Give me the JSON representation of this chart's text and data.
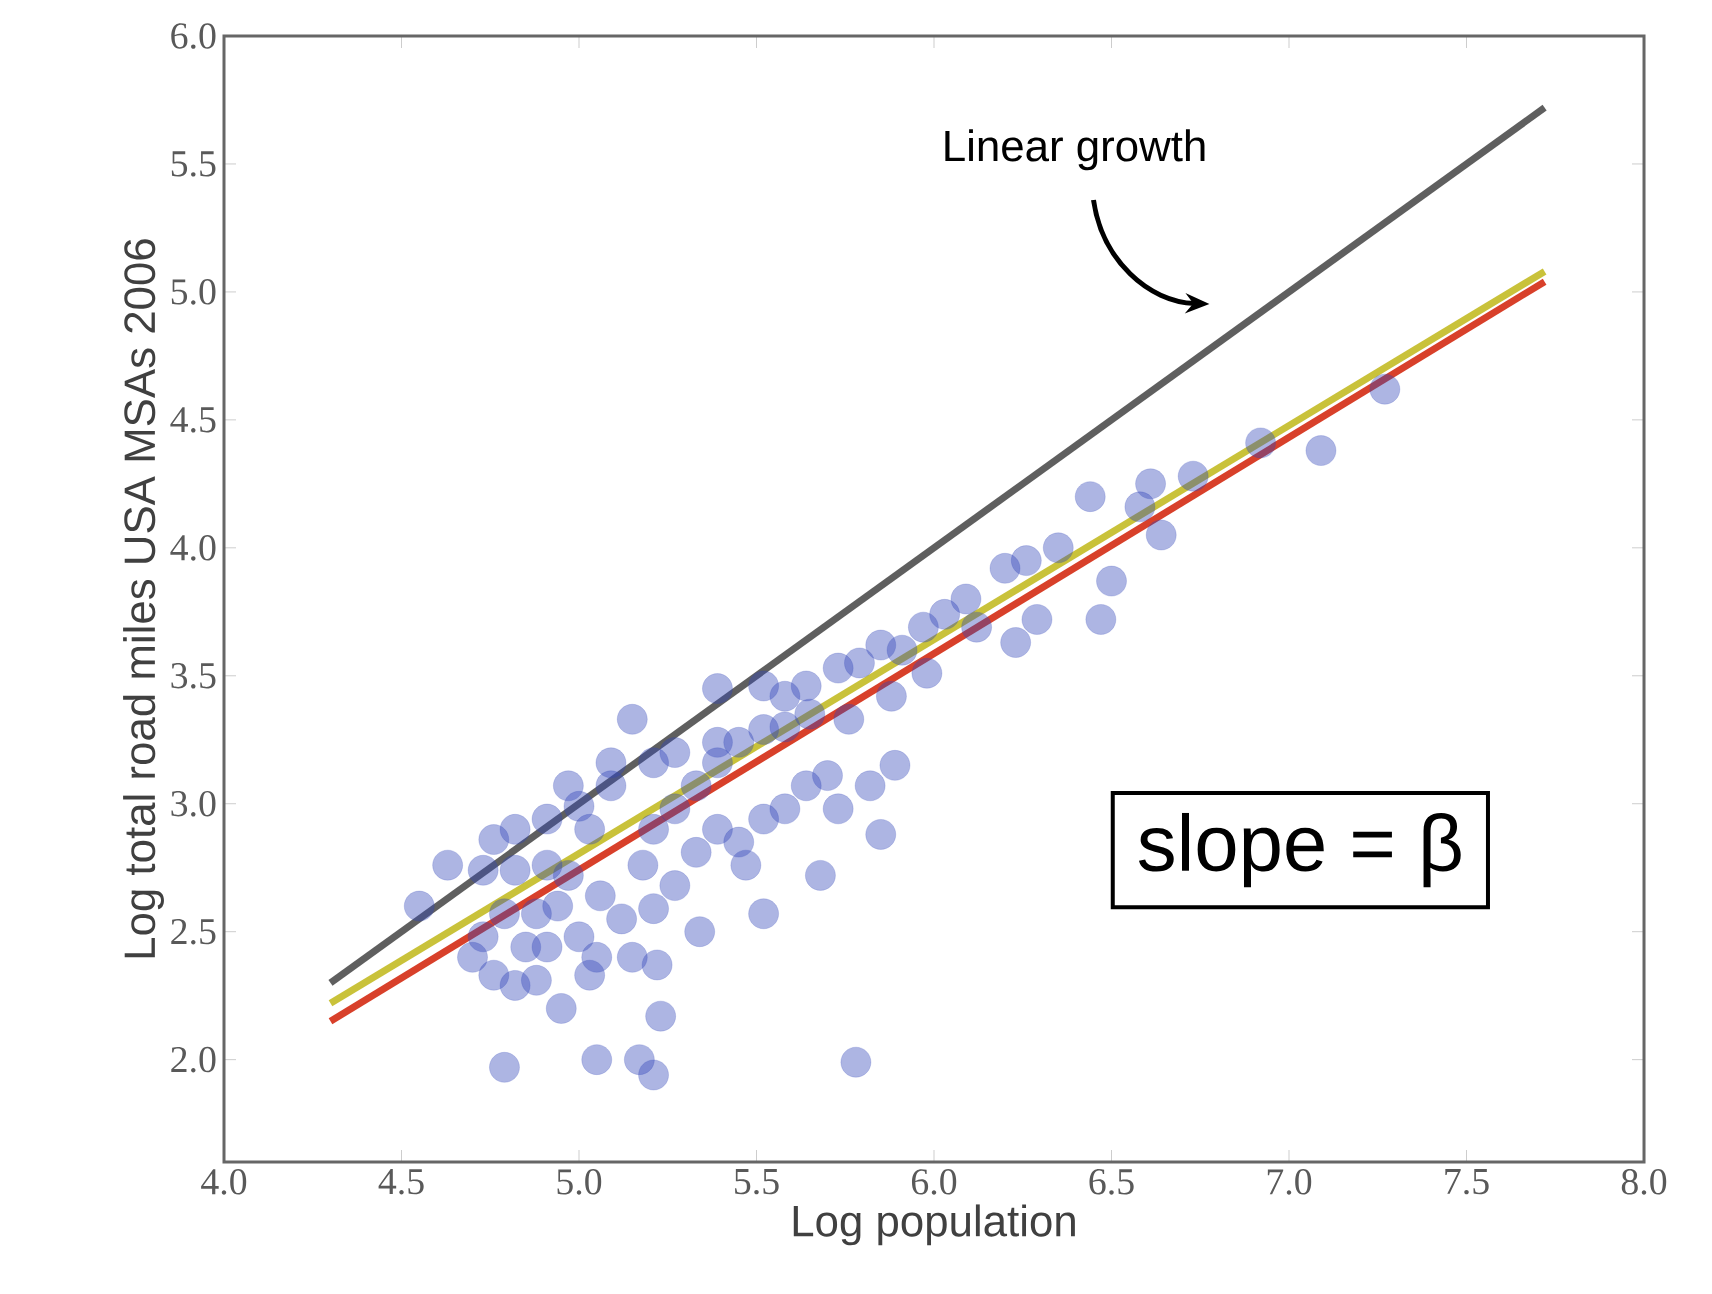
{
  "chart_data": {
    "type": "scatter",
    "xlabel": "Log population",
    "ylabel": "Log total road miles USA MSAs 2006",
    "xlim": [
      4.0,
      8.0
    ],
    "ylim": [
      1.6,
      6.0
    ],
    "xticks": [
      {
        "value": 4.0,
        "label": "4.0"
      },
      {
        "value": 4.5,
        "label": "4.5"
      },
      {
        "value": 5.0,
        "label": "5.0"
      },
      {
        "value": 5.5,
        "label": "5.5"
      },
      {
        "value": 6.0,
        "label": "6.0"
      },
      {
        "value": 6.5,
        "label": "6.5"
      },
      {
        "value": 7.0,
        "label": "7.0"
      },
      {
        "value": 7.5,
        "label": "7.5"
      },
      {
        "value": 8.0,
        "label": "8.0"
      }
    ],
    "yticks": [
      {
        "value": 2.0,
        "label": "2.0"
      },
      {
        "value": 2.5,
        "label": "2.5"
      },
      {
        "value": 3.0,
        "label": "3.0"
      },
      {
        "value": 3.5,
        "label": "3.5"
      },
      {
        "value": 4.0,
        "label": "4.0"
      },
      {
        "value": 4.5,
        "label": "4.5"
      },
      {
        "value": 5.0,
        "label": "5.0"
      },
      {
        "value": 5.5,
        "label": "5.5"
      },
      {
        "value": 6.0,
        "label": "6.0"
      }
    ],
    "grid": false,
    "annotations": [
      "Linear growth",
      "slope = β"
    ],
    "series": [
      {
        "marker": "circle",
        "color": "#3347b8",
        "x": [
          4.55,
          4.63,
          4.79,
          5.05,
          5.21,
          5.17,
          5.78,
          5.15,
          5.39,
          5.22,
          5.23,
          5.05,
          4.95,
          5.34,
          5.52,
          5.47,
          5.68,
          5.58,
          5.85,
          5.89,
          5.82,
          5.73,
          5.58,
          5.65,
          5.85,
          5.98,
          5.97,
          6.09,
          6.23,
          6.29,
          6.2,
          6.26,
          6.35,
          6.44,
          6.47,
          6.5,
          6.61,
          6.64,
          6.73,
          6.92,
          7.09,
          7.27,
          6.58,
          6.12,
          6.03,
          4.7,
          4.73,
          4.76,
          4.82,
          4.88,
          4.85,
          4.79,
          4.73,
          4.76,
          4.82,
          4.91,
          4.97,
          5.0,
          5.09,
          5.09,
          5.03,
          4.91,
          4.97,
          4.94,
          5.06,
          5.12,
          5.18,
          5.21,
          5.27,
          5.33,
          5.39,
          5.45,
          5.52,
          5.58,
          5.64,
          5.73,
          5.79,
          5.91,
          5.33,
          5.39,
          5.27,
          5.21,
          5.52,
          5.45,
          5.64,
          5.7,
          5.0,
          4.88,
          5.15,
          4.82,
          5.21,
          5.27,
          4.91,
          5.03,
          5.76,
          5.88,
          5.52,
          5.39
        ],
        "values": [
          2.6,
          2.76,
          1.97,
          2.0,
          1.94,
          2.0,
          1.99,
          3.33,
          3.45,
          2.37,
          2.17,
          2.4,
          2.2,
          2.5,
          2.57,
          2.76,
          2.72,
          2.98,
          2.88,
          3.15,
          3.07,
          2.98,
          3.3,
          3.35,
          3.62,
          3.51,
          3.69,
          3.8,
          3.63,
          3.72,
          3.92,
          3.95,
          4.0,
          4.2,
          3.72,
          3.87,
          4.25,
          4.05,
          4.28,
          4.41,
          4.38,
          4.62,
          4.16,
          3.69,
          3.74,
          2.4,
          2.48,
          2.33,
          2.29,
          2.31,
          2.44,
          2.57,
          2.74,
          2.86,
          2.9,
          2.94,
          3.07,
          2.99,
          3.07,
          3.16,
          2.9,
          2.76,
          2.72,
          2.6,
          2.64,
          2.55,
          2.76,
          2.9,
          2.98,
          3.07,
          3.16,
          3.24,
          3.29,
          3.42,
          3.46,
          3.53,
          3.55,
          3.6,
          2.81,
          2.9,
          2.68,
          2.59,
          2.94,
          2.85,
          3.07,
          3.11,
          2.48,
          2.57,
          2.4,
          2.74,
          3.16,
          3.2,
          2.44,
          2.33,
          3.33,
          3.42,
          3.46,
          3.24
        ]
      },
      {
        "type": "line",
        "marker": "none",
        "color": "#5f5f5f",
        "x": [
          4.3,
          7.72
        ],
        "values": [
          2.3,
          5.72
        ]
      },
      {
        "type": "line",
        "marker": "none",
        "color": "#c9c23a",
        "x": [
          4.3,
          7.72
        ],
        "values": [
          2.22,
          5.08
        ]
      },
      {
        "type": "line",
        "marker": "none",
        "color": "#d8402a",
        "x": [
          4.3,
          7.72
        ],
        "values": [
          2.15,
          5.04
        ]
      }
    ]
  }
}
